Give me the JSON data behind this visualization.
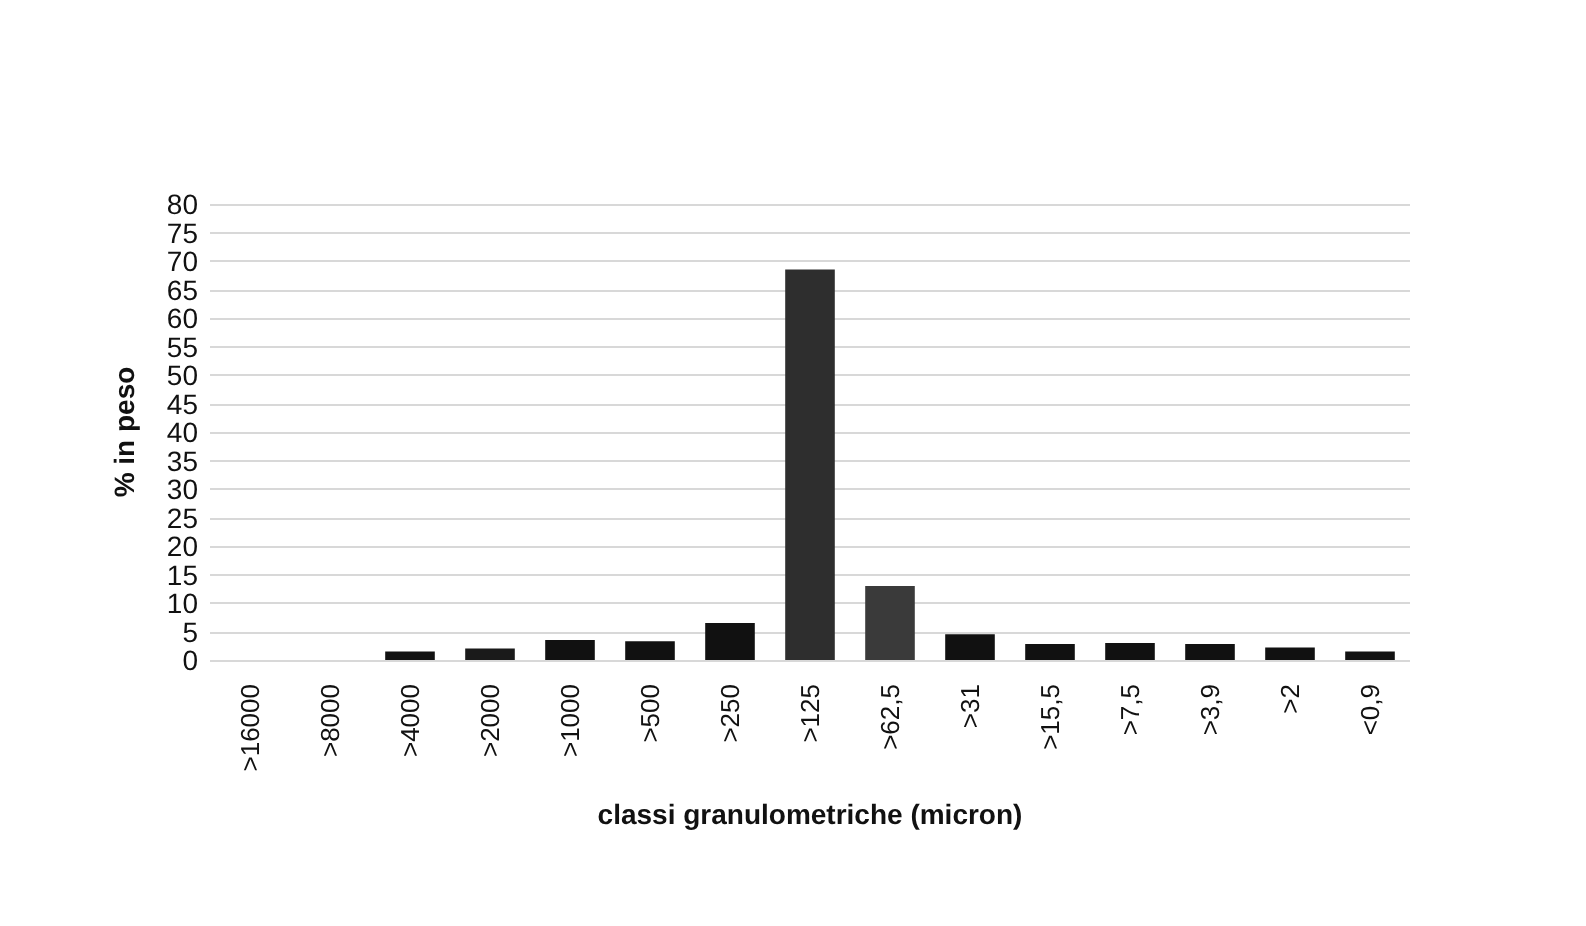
{
  "chart_data": {
    "type": "bar",
    "xlabel": "classi granulometriche (micron)",
    "ylabel": "% in peso",
    "categories": [
      ">16000",
      ">8000",
      ">4000",
      ">2000",
      ">1000",
      ">500",
      ">250",
      ">125",
      ">62,5",
      ">31",
      ">15,5",
      ">7,5",
      ">3,9",
      ">2",
      "<0,9"
    ],
    "values": [
      0,
      0,
      1.5,
      2,
      3.5,
      3.3,
      6.5,
      68.5,
      13,
      4.5,
      2.8,
      3,
      2.8,
      2.2,
      1.5
    ],
    "colors": [
      "#111111",
      "#111111",
      "#111111",
      "#1a1a1a",
      "#111111",
      "#111111",
      "#111111",
      "#2e2e2e",
      "#3a3a3a",
      "#111111",
      "#111111",
      "#111111",
      "#111111",
      "#111111",
      "#111111"
    ],
    "ylim": [
      0,
      80
    ],
    "yticks": [
      0,
      5,
      10,
      15,
      20,
      25,
      30,
      35,
      40,
      45,
      50,
      55,
      60,
      65,
      70,
      75,
      80
    ],
    "grid": "y"
  }
}
